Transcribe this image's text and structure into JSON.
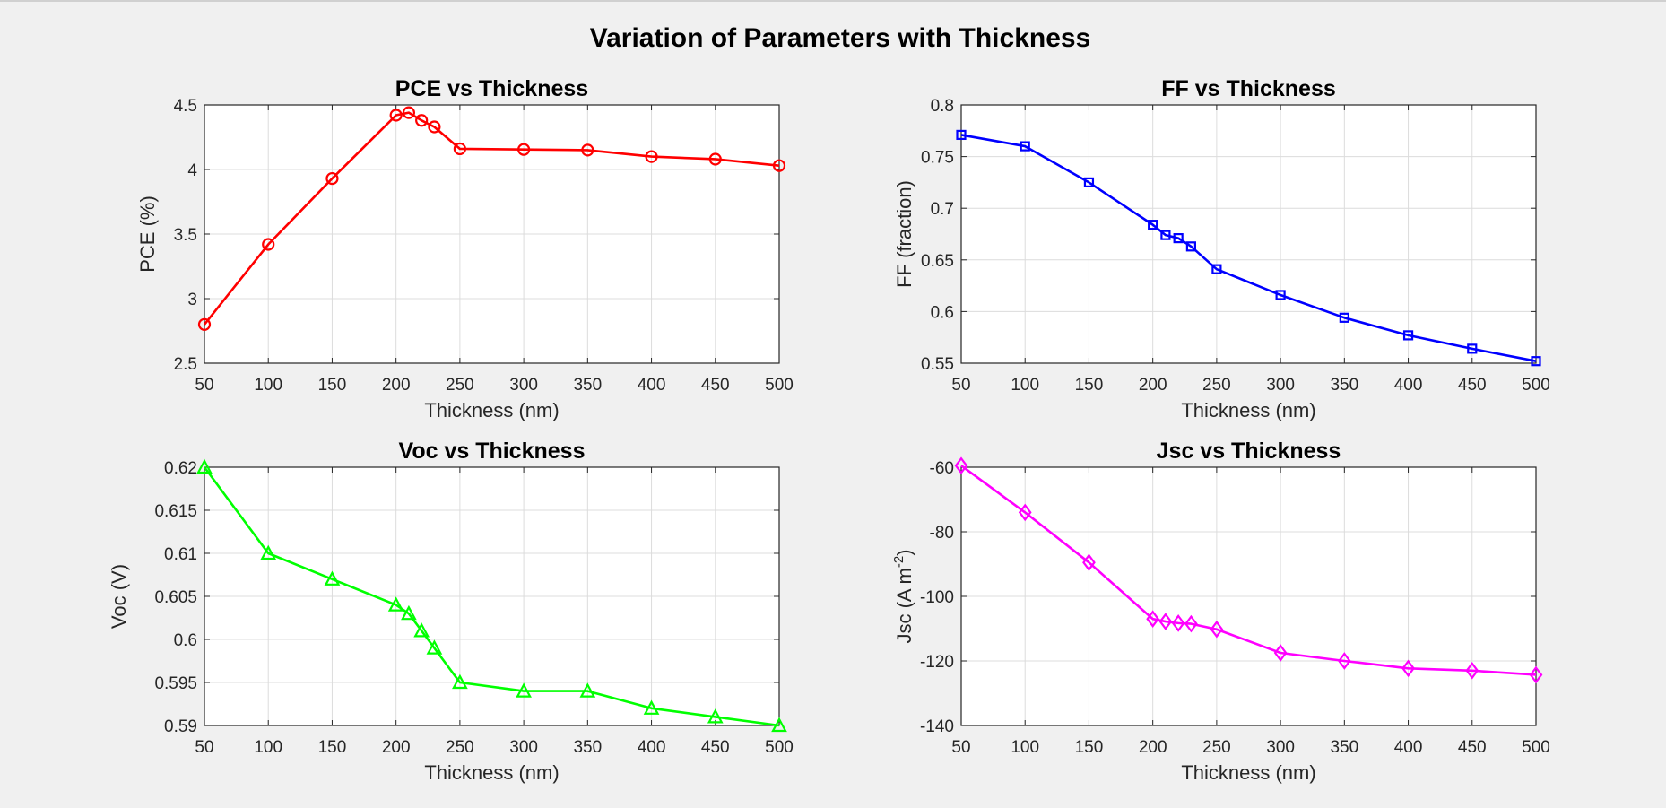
{
  "figure": {
    "title": "Variation of Parameters with Thickness",
    "background": "#f0f0f0"
  },
  "chart_data": [
    {
      "type": "line",
      "title": "PCE vs Thickness",
      "xlabel": "Thickness (nm)",
      "ylabel": "PCE (%)",
      "xlim": [
        50,
        500
      ],
      "ylim": [
        2.5,
        4.5
      ],
      "xticks": [
        "50",
        "100",
        "150",
        "200",
        "250",
        "300",
        "350",
        "400",
        "450",
        "500"
      ],
      "yticks": [
        "2.5",
        "3",
        "3.5",
        "4",
        "4.5"
      ],
      "grid": true,
      "x": [
        50,
        100,
        150,
        200,
        210,
        220,
        230,
        250,
        300,
        350,
        400,
        450,
        500
      ],
      "series": [
        {
          "values": [
            2.8,
            3.42,
            3.93,
            4.42,
            4.44,
            4.38,
            4.33,
            4.16,
            4.155,
            4.15,
            4.1,
            4.08,
            4.03
          ],
          "color": "#ff0000",
          "marker": "circle"
        }
      ]
    },
    {
      "type": "line",
      "title": "FF vs Thickness",
      "xlabel": "Thickness (nm)",
      "ylabel": "FF (fraction)",
      "xlim": [
        50,
        500
      ],
      "ylim": [
        0.55,
        0.8
      ],
      "xticks": [
        "50",
        "100",
        "150",
        "200",
        "250",
        "300",
        "350",
        "400",
        "450",
        "500"
      ],
      "yticks": [
        "0.55",
        "0.6",
        "0.65",
        "0.7",
        "0.75",
        "0.8"
      ],
      "grid": true,
      "x": [
        50,
        100,
        150,
        200,
        210,
        220,
        230,
        250,
        300,
        350,
        400,
        450,
        500
      ],
      "series": [
        {
          "values": [
            0.771,
            0.76,
            0.725,
            0.684,
            0.674,
            0.671,
            0.663,
            0.641,
            0.616,
            0.594,
            0.577,
            0.564,
            0.552
          ],
          "color": "#0000ff",
          "marker": "square"
        }
      ]
    },
    {
      "type": "line",
      "title": "Voc vs Thickness",
      "xlabel": "Thickness (nm)",
      "ylabel": "Voc (V)",
      "xlim": [
        50,
        500
      ],
      "ylim": [
        0.59,
        0.62
      ],
      "xticks": [
        "50",
        "100",
        "150",
        "200",
        "250",
        "300",
        "350",
        "400",
        "450",
        "500"
      ],
      "yticks": [
        "0.59",
        "0.595",
        "0.6",
        "0.605",
        "0.61",
        "0.615",
        "0.62"
      ],
      "grid": true,
      "x": [
        50,
        100,
        150,
        200,
        210,
        220,
        230,
        250,
        300,
        350,
        400,
        450,
        500
      ],
      "series": [
        {
          "values": [
            0.62,
            0.61,
            0.607,
            0.604,
            0.603,
            0.601,
            0.599,
            0.595,
            0.594,
            0.594,
            0.592,
            0.591,
            0.59
          ],
          "color": "#00ff00",
          "marker": "triangle"
        }
      ]
    },
    {
      "type": "line",
      "title": "Jsc vs Thickness",
      "xlabel": "Thickness (nm)",
      "ylabel_main": "Jsc (A m",
      "ylabel_sup": "-2",
      "ylabel_end": ")",
      "xlim": [
        50,
        500
      ],
      "ylim": [
        -140,
        -60
      ],
      "xticks": [
        "50",
        "100",
        "150",
        "200",
        "250",
        "300",
        "350",
        "400",
        "450",
        "500"
      ],
      "yticks": [
        "-140",
        "-120",
        "-100",
        "-80",
        "-60"
      ],
      "grid": true,
      "x": [
        50,
        100,
        150,
        200,
        210,
        220,
        230,
        250,
        300,
        350,
        400,
        450,
        500
      ],
      "series": [
        {
          "values": [
            -59.5,
            -74,
            -89.5,
            -107,
            -107.8,
            -108.3,
            -108.5,
            -110.2,
            -117.5,
            -120,
            -122.3,
            -123,
            -124.3
          ],
          "color": "#ff00ff",
          "marker": "diamond"
        }
      ]
    }
  ]
}
